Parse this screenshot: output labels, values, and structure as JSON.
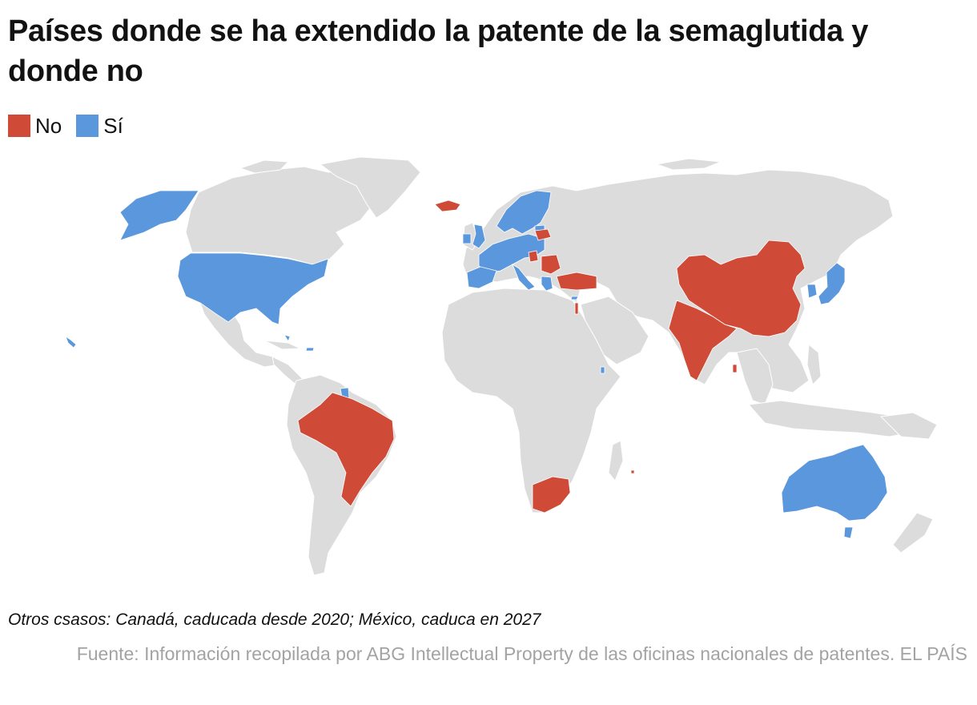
{
  "title": "Países donde se ha extendido la patente de la semaglutida y donde no",
  "legend": [
    {
      "label": "No",
      "color": "#cf4a37"
    },
    {
      "label": "Sí",
      "color": "#5b97dc"
    }
  ],
  "map": {
    "base_color": "#dcdcdc",
    "countries_no": [
      "Iceland",
      "Latvia",
      "Lithuania",
      "Serbia",
      "Romania",
      "Bulgaria",
      "Turkey",
      "Israel",
      "China",
      "India",
      "Brazil",
      "South Africa",
      "Mauritius",
      "Sri Lanka"
    ],
    "countries_si": [
      "United States",
      "Alaska",
      "Hawaii",
      "Norway",
      "Sweden",
      "Finland",
      "Estonia",
      "United Kingdom",
      "Ireland",
      "France",
      "Spain",
      "Portugal",
      "Germany",
      "Poland",
      "Italy",
      "Greece",
      "Japan",
      "South Korea",
      "Australia",
      "French Guiana",
      "Bahamas",
      "Puerto Rico",
      "Djibouti",
      "Cyprus"
    ]
  },
  "note": "Otros csasos: Canadá, caducada desde 2020; México, caduca en 2027",
  "source": "Fuente: Información recopilada por ABG Intellectual Property de las oficinas nacionales de patentes. EL PAÍS"
}
